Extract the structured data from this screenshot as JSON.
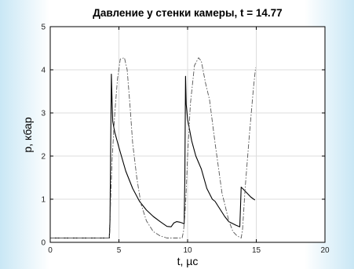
{
  "chart_data": {
    "type": "line",
    "title": "Давление у стенки камеры, t = 14.77",
    "xlabel": "t, µс",
    "ylabel": "р, кбар",
    "xlim": [
      0,
      20
    ],
    "ylim": [
      0,
      5
    ],
    "xticks": [
      "0",
      "5",
      "10",
      "15",
      "20"
    ],
    "yticks": [
      "0",
      "1",
      "2",
      "3",
      "4",
      "5"
    ],
    "grid": true,
    "legend": "none",
    "colors": {
      "solid": "#000000",
      "dashdot": "#555555",
      "axes": "#000000",
      "grid": "#dddddd"
    },
    "series": [
      {
        "style": "solid",
        "x": [
          0,
          4.3,
          4.35,
          4.4,
          4.45,
          4.5,
          4.55,
          4.7,
          5,
          5.5,
          6,
          6.5,
          7,
          7.5,
          8,
          8.5,
          8.8,
          9,
          9.2,
          9.4,
          9.6,
          9.75,
          9.8,
          9.85,
          9.9,
          10,
          10.3,
          10.6,
          11,
          11.4,
          11.8,
          12,
          12.3,
          12.7,
          13,
          13.5,
          13.8,
          13.85,
          13.9,
          14,
          14.3,
          14.6,
          14.9
        ],
        "y": [
          0.1,
          0.1,
          0.5,
          2.2,
          3.9,
          3.3,
          2.8,
          2.55,
          2.2,
          1.65,
          1.25,
          0.95,
          0.75,
          0.6,
          0.48,
          0.37,
          0.36,
          0.45,
          0.48,
          0.47,
          0.45,
          0.43,
          1.5,
          3.85,
          3.2,
          2.85,
          2.35,
          2.0,
          1.7,
          1.25,
          1.0,
          0.95,
          0.8,
          0.6,
          0.48,
          0.4,
          0.36,
          0.8,
          1.28,
          1.25,
          1.15,
          1.05,
          0.98
        ]
      },
      {
        "style": "dashdot",
        "x": [
          0,
          4.3,
          4.35,
          4.4,
          4.5,
          4.7,
          4.9,
          5.1,
          5.4,
          5.6,
          5.8,
          6,
          6.3,
          6.6,
          7,
          7.5,
          8,
          8.5,
          8.8,
          9,
          9.3,
          9.6,
          9.7,
          9.8,
          9.9,
          10,
          10.2,
          10.5,
          10.8,
          11,
          11.3,
          11.6,
          12,
          12.5,
          13,
          13.3,
          13.6,
          13.9,
          14,
          14.2,
          14.5,
          14.8,
          14.95
        ],
        "y": [
          0.1,
          0.1,
          0.3,
          1.0,
          1.9,
          3.0,
          3.8,
          4.25,
          4.28,
          4.0,
          3.2,
          2.3,
          1.5,
          0.9,
          0.5,
          0.25,
          0.15,
          0.1,
          0.1,
          0.1,
          0.1,
          0.1,
          0.25,
          0.6,
          1.2,
          2.0,
          3.2,
          4.1,
          4.28,
          4.2,
          3.7,
          3.3,
          2.3,
          1.15,
          0.5,
          0.25,
          0.15,
          0.1,
          0.3,
          1.3,
          2.5,
          3.6,
          4.05
        ]
      }
    ]
  }
}
